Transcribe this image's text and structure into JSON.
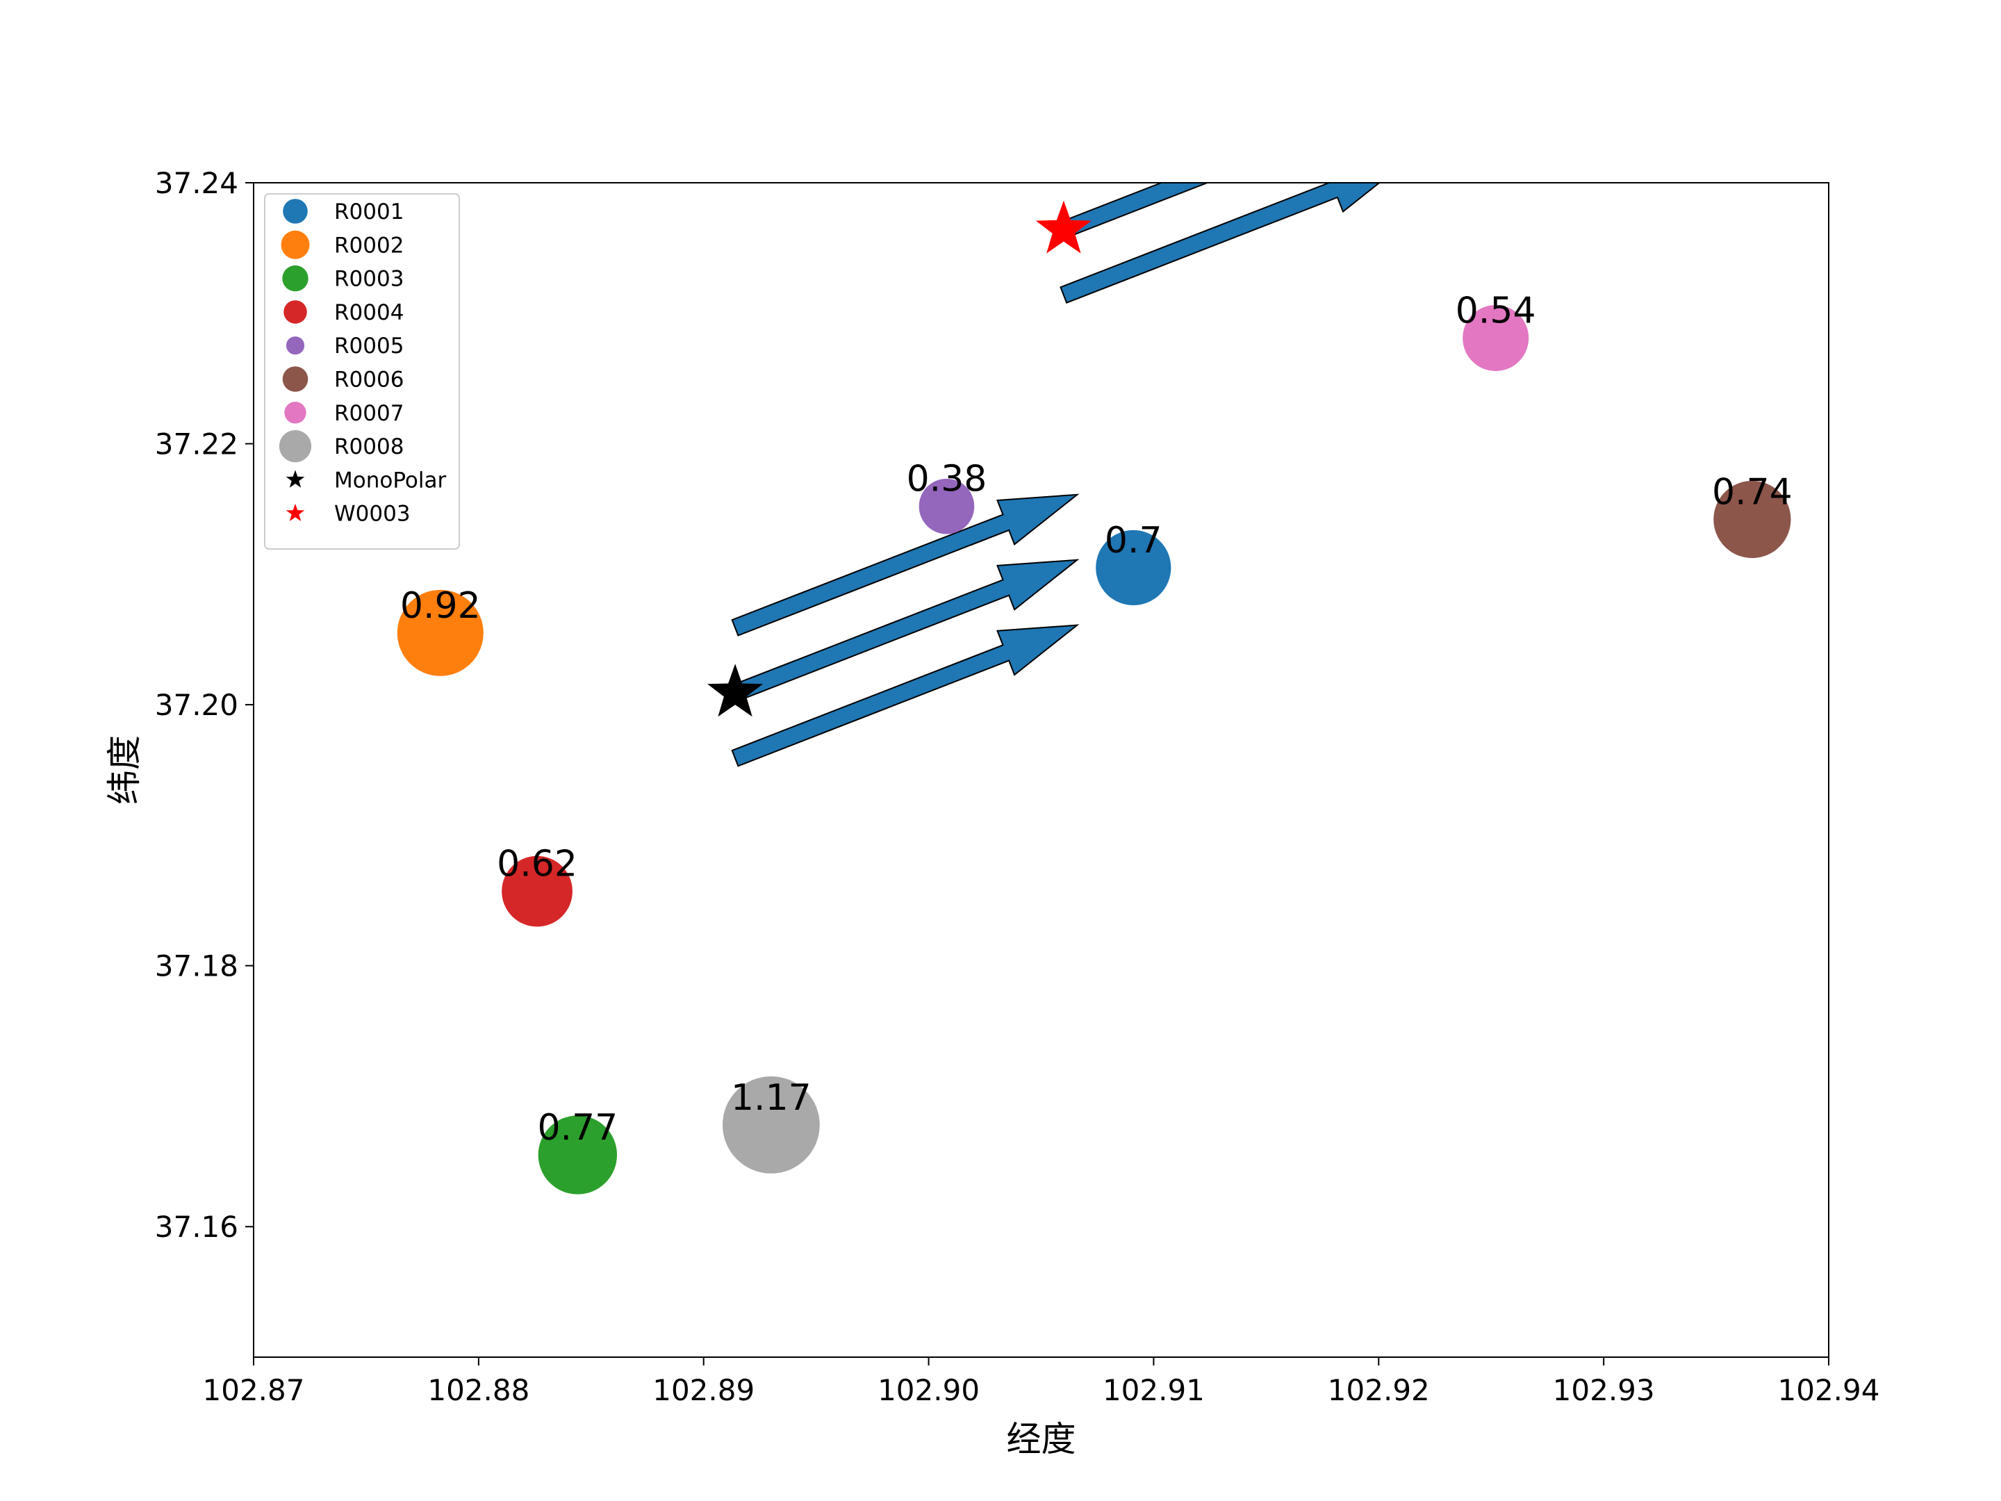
{
  "chart_data": {
    "type": "scatter",
    "title": "",
    "xlabel": "经度",
    "ylabel": "纬度",
    "xlim": [
      102.87,
      102.94
    ],
    "ylim": [
      37.15,
      37.24
    ],
    "xticks": [
      "102.87",
      "102.88",
      "102.89",
      "102.90",
      "102.91",
      "102.92",
      "102.93",
      "102.94"
    ],
    "yticks": [
      "37.16",
      "37.18",
      "37.20",
      "37.22",
      "37.24"
    ],
    "grid": false,
    "legend_position": "top-left",
    "series": [
      {
        "name": "R0001",
        "marker": "circle",
        "color": "#1f77b4",
        "x": 102.9091,
        "y": 37.2105,
        "value": 0.7,
        "label": "0.7"
      },
      {
        "name": "R0002",
        "marker": "circle",
        "color": "#ff7f0e",
        "x": 102.8783,
        "y": 37.2055,
        "value": 0.92,
        "label": "0.92"
      },
      {
        "name": "R0003",
        "marker": "circle",
        "color": "#2ca02c",
        "x": 102.8844,
        "y": 37.1655,
        "value": 0.77,
        "label": "0.77"
      },
      {
        "name": "R0004",
        "marker": "circle",
        "color": "#d62728",
        "x": 102.8826,
        "y": 37.1857,
        "value": 0.62,
        "label": "0.62"
      },
      {
        "name": "R0005",
        "marker": "circle",
        "color": "#9467bd",
        "x": 102.9008,
        "y": 37.2152,
        "value": 0.38,
        "label": "0.38"
      },
      {
        "name": "R0006",
        "marker": "circle",
        "color": "#8c564b",
        "x": 102.9366,
        "y": 37.2142,
        "value": 0.74,
        "label": "0.74"
      },
      {
        "name": "R0007",
        "marker": "circle",
        "color": "#e377c2",
        "x": 102.9252,
        "y": 37.2281,
        "value": 0.54,
        "label": "0.54"
      },
      {
        "name": "R0008",
        "marker": "circle",
        "color": "#a9a9a9",
        "x": 102.893,
        "y": 37.1678,
        "value": 1.17,
        "label": "1.17"
      },
      {
        "name": "MonoPolar",
        "marker": "star",
        "color": "#000000",
        "x": 102.8914,
        "y": 37.2009
      },
      {
        "name": "W0003",
        "marker": "star",
        "color": "#ff0000",
        "x": 102.906,
        "y": 37.2364
      }
    ],
    "arrows": [
      {
        "color": "#1f77b4",
        "x0": 102.8914,
        "y0": 37.2059,
        "x1": 102.9066,
        "y1": 37.2161
      },
      {
        "color": "#1f77b4",
        "x0": 102.8914,
        "y0": 37.2009,
        "x1": 102.9066,
        "y1": 37.2111
      },
      {
        "color": "#1f77b4",
        "x0": 102.8914,
        "y0": 37.1959,
        "x1": 102.9066,
        "y1": 37.2061
      },
      {
        "color": "#1f77b4",
        "x0": 102.906,
        "y0": 37.2364,
        "x1": 102.9212,
        "y1": 37.2466
      },
      {
        "color": "#1f77b4",
        "x0": 102.906,
        "y0": 37.2314,
        "x1": 102.9212,
        "y1": 37.2416
      }
    ]
  }
}
